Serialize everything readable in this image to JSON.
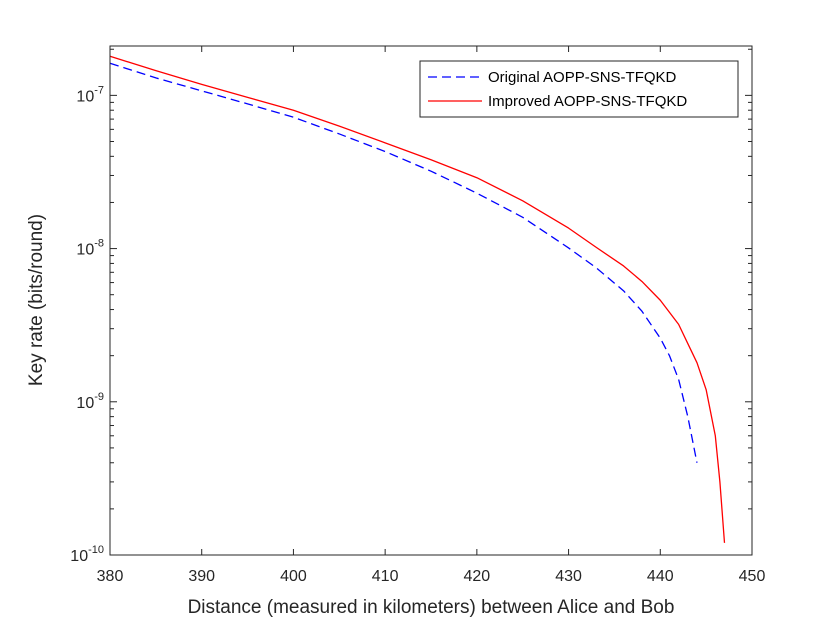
{
  "chart_data": {
    "type": "line",
    "title": "",
    "xlabel": "Distance (measured in kilometers) between Alice and Bob",
    "ylabel": "Key rate (bits/round)",
    "xlim": [
      380,
      450
    ],
    "ylim": [
      1e-10,
      2.1e-07
    ],
    "yscale": "log",
    "grid": false,
    "legend_position": "top-right",
    "x_ticks": [
      380,
      390,
      400,
      410,
      420,
      430,
      440,
      450
    ],
    "y_ticks": [
      {
        "value": 1e-10,
        "base": "10",
        "exp": "-10"
      },
      {
        "value": 1e-09,
        "base": "10",
        "exp": "-9"
      },
      {
        "value": 1e-08,
        "base": "10",
        "exp": "-8"
      },
      {
        "value": 1e-07,
        "base": "10",
        "exp": "-7"
      }
    ],
    "series": [
      {
        "name": "Original AOPP-SNS-TFQKD",
        "color": "#0000ff",
        "style": "dashed",
        "x": [
          380,
          385,
          390,
          395,
          400,
          405,
          410,
          415,
          420,
          425,
          430,
          433,
          436,
          438,
          440,
          441,
          442,
          443,
          444
        ],
        "y": [
          1.62e-07,
          1.3e-07,
          1.07e-07,
          8.8e-08,
          7.2e-08,
          5.6e-08,
          4.3e-08,
          3.2e-08,
          2.3e-08,
          1.6e-08,
          1.01e-08,
          7.5e-09,
          5.3e-09,
          3.9e-09,
          2.6e-09,
          2e-09,
          1.4e-09,
          8e-10,
          4e-10
        ]
      },
      {
        "name": "Improved AOPP-SNS-TFQKD",
        "color": "#ff0000",
        "style": "solid",
        "x": [
          380,
          385,
          390,
          395,
          400,
          405,
          410,
          415,
          420,
          425,
          430,
          433,
          436,
          438,
          440,
          442,
          443,
          444,
          445,
          446,
          446.5,
          447
        ],
        "y": [
          1.8e-07,
          1.45e-07,
          1.18e-07,
          9.7e-08,
          8e-08,
          6.3e-08,
          4.9e-08,
          3.8e-08,
          2.9e-08,
          2.05e-08,
          1.36e-08,
          1.02e-08,
          7.7e-09,
          6.1e-09,
          4.6e-09,
          3.2e-09,
          2.4e-09,
          1.8e-09,
          1.2e-09,
          6e-10,
          3e-10,
          1.2e-10
        ]
      }
    ]
  }
}
